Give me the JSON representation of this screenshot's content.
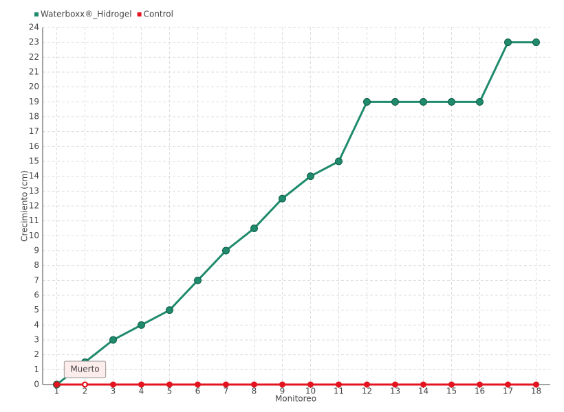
{
  "chart_data": {
    "type": "line",
    "x_label": "Monitoreo",
    "y_label": "Crecimiento (cm)",
    "categories": [
      "1",
      "2",
      "3",
      "4",
      "5",
      "6",
      "7",
      "8",
      "9",
      "10",
      "11",
      "12",
      "13",
      "14",
      "15",
      "16",
      "17",
      "18"
    ],
    "series": [
      {
        "name": "Waterboxx®_Hidrogel",
        "color": "#1f8a6c",
        "values": [
          0,
          1.5,
          3,
          4,
          5,
          7,
          9,
          10.5,
          12.5,
          14,
          15,
          19,
          19,
          19,
          19,
          19,
          23,
          23
        ]
      },
      {
        "name": "Control",
        "color": "#e3141f",
        "values": [
          0,
          0,
          0,
          0,
          0,
          0,
          0,
          0,
          0,
          0,
          0,
          0,
          0,
          0,
          0,
          0,
          0,
          0
        ]
      }
    ],
    "annotation": "Muerto",
    "ylim": [
      0,
      24
    ],
    "yticks": [
      0,
      1,
      2,
      3,
      4,
      5,
      6,
      7,
      8,
      9,
      10,
      11,
      12,
      13,
      14,
      15,
      16,
      17,
      18,
      19,
      20,
      21,
      22,
      23,
      24
    ],
    "grid": true
  }
}
